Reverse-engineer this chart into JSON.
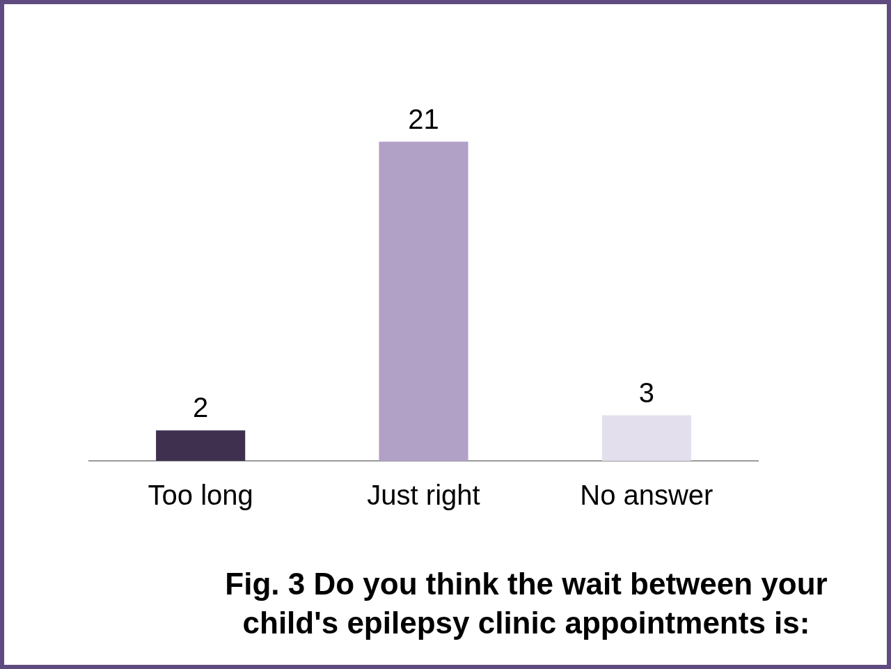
{
  "chart_data": {
    "type": "bar",
    "title": "Fig. 3 Do you think the wait between your child's epilepsy clinic appointments is:",
    "categories": [
      "Too long",
      "Just right",
      "No answer"
    ],
    "values": [
      2,
      21,
      3
    ],
    "colors": [
      "#3f3050",
      "#b2a1c7",
      "#e4dfec"
    ],
    "tick_labels": "x",
    "data_labels": true,
    "grid": false,
    "legend": false
  }
}
